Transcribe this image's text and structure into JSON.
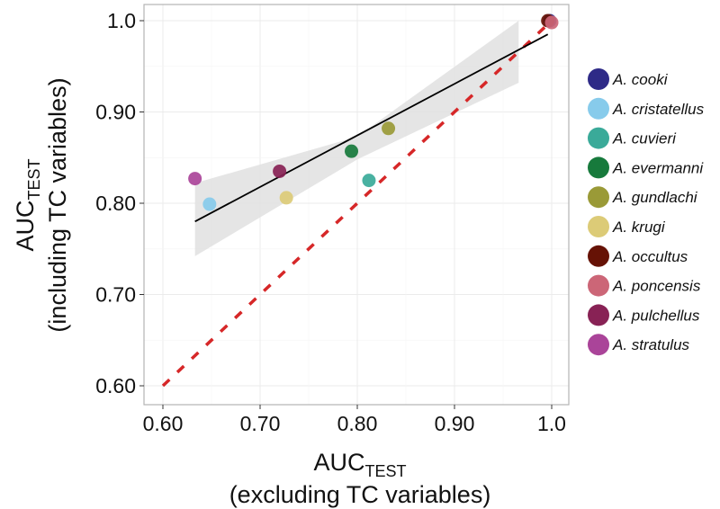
{
  "chart_data": {
    "type": "scatter",
    "xlabel": {
      "main": "AUC",
      "sub": "TEST",
      "line2": "(excluding TC variables)"
    },
    "ylabel": {
      "main": "AUC",
      "sub": "TEST",
      "line2": "(including TC variables)"
    },
    "xlim": [
      0.58,
      1.01
    ],
    "ylim": [
      0.58,
      1.018
    ],
    "xticks": [
      {
        "v": 0.6,
        "label": "0.60"
      },
      {
        "v": 0.7,
        "label": "0.70"
      },
      {
        "v": 0.8,
        "label": "0.80"
      },
      {
        "v": 0.9,
        "label": "0.90"
      },
      {
        "v": 1.0,
        "label": "1.0"
      }
    ],
    "yticks": [
      {
        "v": 0.6,
        "label": "0.60"
      },
      {
        "v": 0.7,
        "label": "0.70"
      },
      {
        "v": 0.8,
        "label": "0.80"
      },
      {
        "v": 0.9,
        "label": "0.90"
      },
      {
        "v": 1.0,
        "label": "1.0"
      }
    ],
    "grid": true,
    "legend_position": "right",
    "points": [
      {
        "name": "A. cooki",
        "x": 0.998,
        "y": 1.0,
        "color": "#2e2a87"
      },
      {
        "name": "A. cristatellus",
        "x": 0.648,
        "y": 0.799,
        "color": "#87cbeb"
      },
      {
        "name": "A. cuvieri",
        "x": 0.812,
        "y": 0.825,
        "color": "#3aaa99"
      },
      {
        "name": "A. evermanni",
        "x": 0.794,
        "y": 0.857,
        "color": "#177a3c"
      },
      {
        "name": "A. gundlachi",
        "x": 0.832,
        "y": 0.882,
        "color": "#9a9a37"
      },
      {
        "name": "A. krugi",
        "x": 0.727,
        "y": 0.806,
        "color": "#dccb77"
      },
      {
        "name": "A. occultus",
        "x": 0.996,
        "y": 1.0,
        "color": "#661205"
      },
      {
        "name": "A. poncensis",
        "x": 1.0,
        "y": 0.998,
        "color": "#cc6677"
      },
      {
        "name": "A. pulchellus",
        "x": 0.72,
        "y": 0.835,
        "color": "#882255"
      },
      {
        "name": "A. stratulus",
        "x": 0.633,
        "y": 0.827,
        "color": "#aa4499"
      }
    ],
    "regression": {
      "x": [
        0.633,
        0.996
      ],
      "y": [
        0.78,
        0.985
      ],
      "color": "#000000"
    },
    "confidence_band": {
      "x": [
        0.633,
        0.8,
        0.966
      ],
      "lower": [
        0.742,
        0.848,
        0.932
      ],
      "upper": [
        0.822,
        0.873,
        1.0
      ],
      "color": "#e0e0e0"
    },
    "identity_line": {
      "x": [
        0.6,
        1.0
      ],
      "y": [
        0.6,
        1.0
      ],
      "color": "#d62728",
      "style": "dashed"
    }
  }
}
